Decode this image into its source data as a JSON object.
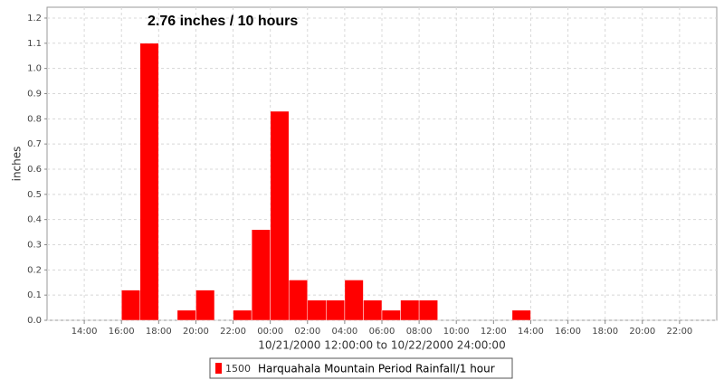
{
  "chart_data": {
    "type": "bar",
    "annotation": "2.76 inches / 10 hours",
    "x_label": "10/21/2000 12:00:00 to 10/22/2000 24:00:00",
    "y_label": "inches",
    "xlim": [
      0,
      36
    ],
    "xticks": [
      {
        "value": 2,
        "label": "14:00"
      },
      {
        "value": 4,
        "label": "16:00"
      },
      {
        "value": 6,
        "label": "18:00"
      },
      {
        "value": 8,
        "label": "20:00"
      },
      {
        "value": 10,
        "label": "22:00"
      },
      {
        "value": 12,
        "label": "00:00"
      },
      {
        "value": 14,
        "label": "02:00"
      },
      {
        "value": 16,
        "label": "04:00"
      },
      {
        "value": 18,
        "label": "06:00"
      },
      {
        "value": 20,
        "label": "08:00"
      },
      {
        "value": 22,
        "label": "10:00"
      },
      {
        "value": 24,
        "label": "12:00"
      },
      {
        "value": 26,
        "label": "14:00"
      },
      {
        "value": 28,
        "label": "16:00"
      },
      {
        "value": 30,
        "label": "18:00"
      },
      {
        "value": 32,
        "label": "20:00"
      },
      {
        "value": 34,
        "label": "22:00"
      }
    ],
    "ylim": [
      0,
      1.243
    ],
    "yticks": [
      {
        "value": 0,
        "label": "0.0"
      },
      0.1,
      0.2,
      0.3,
      0.4,
      0.5,
      0.6,
      0.7,
      0.8,
      0.9,
      {
        "value": 1,
        "label": "1.0"
      },
      1.1,
      1.2
    ],
    "grid": true,
    "series": [
      {
        "id": "1500",
        "name": "Harquahala Mountain Period Rainfall/1 hour",
        "color": "#ff0000",
        "x": [
          4,
          5,
          7,
          8,
          10,
          11,
          12,
          13,
          14,
          15,
          16,
          17,
          18,
          19,
          20,
          25
        ],
        "values": [
          0.12,
          1.1,
          0.04,
          0.12,
          0.04,
          0.36,
          0.83,
          0.16,
          0.08,
          0.08,
          0.16,
          0.08,
          0.04,
          0.08,
          0.08,
          0.04
        ]
      }
    ]
  }
}
